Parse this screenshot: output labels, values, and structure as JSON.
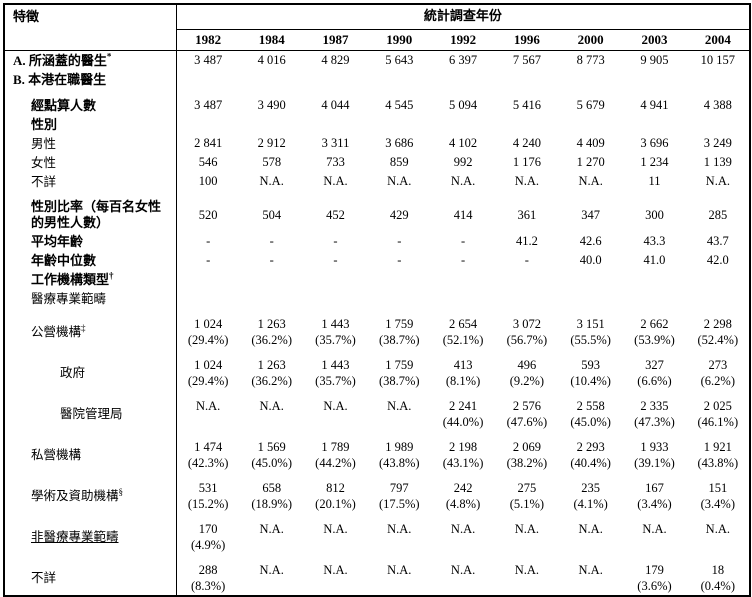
{
  "header": {
    "feature_label": "特徵",
    "year_group_label": "統計調查年份",
    "years": [
      "1982",
      "1984",
      "1987",
      "1990",
      "1992",
      "1996",
      "2000",
      "2003",
      "2004"
    ]
  },
  "table": {
    "rows": [
      {
        "label": "A. 所涵蓋的醫生",
        "sup": "*",
        "bold": true,
        "indent": 0,
        "values": [
          "3 487",
          "4 016",
          "4 829",
          "5 643",
          "6 397",
          "7 567",
          "8 773",
          "9 905",
          "10 157"
        ]
      },
      {
        "label": "B. 本港在職醫生",
        "bold": true,
        "indent": 0,
        "values": []
      },
      {
        "label": "經點算人數",
        "bold": true,
        "indent": 1,
        "gap": true,
        "values": [
          "3 487",
          "3 490",
          "4 044",
          "4 545",
          "5 094",
          "5 416",
          "5 679",
          "4 941",
          "4 388"
        ]
      },
      {
        "label": "性別",
        "bold": true,
        "indent": 1,
        "values": []
      },
      {
        "label": "男性",
        "bold": false,
        "indent": 1,
        "values": [
          "2 841",
          "2 912",
          "3 311",
          "3 686",
          "4 102",
          "4 240",
          "4 409",
          "3 696",
          "3 249"
        ]
      },
      {
        "label": "女性",
        "bold": false,
        "indent": 1,
        "values": [
          "546",
          "578",
          "733",
          "859",
          "992",
          "1 176",
          "1 270",
          "1 234",
          "1 139"
        ]
      },
      {
        "label": "不詳",
        "bold": false,
        "indent": 1,
        "values": [
          "100",
          "N.A.",
          "N.A.",
          "N.A.",
          "N.A.",
          "N.A.",
          "N.A.",
          "11",
          "N.A."
        ]
      },
      {
        "label": "性別比率（每百名女性的男性人數）",
        "bold": true,
        "indent": 1,
        "valign": "middle",
        "gap": true,
        "values": [
          "520",
          "504",
          "452",
          "429",
          "414",
          "361",
          "347",
          "300",
          "285"
        ]
      },
      {
        "label": "平均年齡",
        "bold": true,
        "indent": 1,
        "values": [
          "-",
          "-",
          "-",
          "-",
          "-",
          "41.2",
          "42.6",
          "43.3",
          "43.7"
        ]
      },
      {
        "label": "年齡中位數",
        "bold": true,
        "indent": 1,
        "values": [
          "-",
          "-",
          "-",
          "-",
          "-",
          "-",
          "40.0",
          "41.0",
          "42.0"
        ]
      },
      {
        "label": "工作機構類型",
        "sup": "†",
        "bold": true,
        "indent": 1,
        "values": []
      },
      {
        "label": "醫療專業範疇",
        "bold": false,
        "indent": 1,
        "values": []
      },
      {
        "label": "公營機構",
        "sup": "‡",
        "bold": false,
        "indent": 1,
        "gap": true,
        "values": [
          [
            "1 024",
            "(29.4%)"
          ],
          [
            "1 263",
            "(36.2%)"
          ],
          [
            "1 443",
            "(35.7%)"
          ],
          [
            "1 759",
            "(38.7%)"
          ],
          [
            "2 654",
            "(52.1%)"
          ],
          [
            "3 072",
            "(56.7%)"
          ],
          [
            "3 151",
            "(55.5%)"
          ],
          [
            "2 662",
            "(53.9%)"
          ],
          [
            "2 298",
            "(52.4%)"
          ]
        ]
      },
      {
        "label": "政府",
        "bold": false,
        "indent": 2,
        "gap": true,
        "values": [
          [
            "1 024",
            "(29.4%)"
          ],
          [
            "1 263",
            "(36.2%)"
          ],
          [
            "1 443",
            "(35.7%)"
          ],
          [
            "1 759",
            "(38.7%)"
          ],
          [
            "413",
            "(8.1%)"
          ],
          [
            "496",
            "(9.2%)"
          ],
          [
            "593",
            "(10.4%)"
          ],
          [
            "327",
            "(6.6%)"
          ],
          [
            "273",
            "(6.2%)"
          ]
        ]
      },
      {
        "label": "醫院管理局",
        "bold": false,
        "indent": 2,
        "gap": true,
        "values": [
          "N.A.",
          "N.A.",
          "N.A.",
          "N.A.",
          [
            "2 241",
            "(44.0%)"
          ],
          [
            "2 576",
            "(47.6%)"
          ],
          [
            "2 558",
            "(45.0%)"
          ],
          [
            "2 335",
            "(47.3%)"
          ],
          [
            "2 025",
            "(46.1%)"
          ]
        ]
      },
      {
        "label": "私營機構",
        "bold": false,
        "indent": 1,
        "gap": true,
        "values": [
          [
            "1 474",
            "(42.3%)"
          ],
          [
            "1 569",
            "(45.0%)"
          ],
          [
            "1 789",
            "(44.2%)"
          ],
          [
            "1 989",
            "(43.8%)"
          ],
          [
            "2 198",
            "(43.1%)"
          ],
          [
            "2 069",
            "(38.2%)"
          ],
          [
            "2 293",
            "(40.4%)"
          ],
          [
            "1 933",
            "(39.1%)"
          ],
          [
            "1 921",
            "(43.8%)"
          ]
        ]
      },
      {
        "label": "學術及資助機構",
        "sup": "§",
        "bold": false,
        "indent": 1,
        "gap": true,
        "values": [
          [
            "531",
            "(15.2%)"
          ],
          [
            "658",
            "(18.9%)"
          ],
          [
            "812",
            "(20.1%)"
          ],
          [
            "797",
            "(17.5%)"
          ],
          [
            "242",
            "(4.8%)"
          ],
          [
            "275",
            "(5.1%)"
          ],
          [
            "235",
            "(4.1%)"
          ],
          [
            "167",
            "(3.4%)"
          ],
          [
            "151",
            "(3.4%)"
          ]
        ]
      },
      {
        "label": "非醫療專業範疇",
        "bold": false,
        "indent": 1,
        "underline": true,
        "gap": true,
        "values": [
          [
            "170",
            "(4.9%)"
          ],
          "N.A.",
          "N.A.",
          "N.A.",
          "N.A.",
          "N.A.",
          "N.A.",
          "N.A.",
          "N.A."
        ]
      },
      {
        "label": "不詳",
        "bold": false,
        "indent": 1,
        "gap": true,
        "values": [
          [
            "288",
            "(8.3%)"
          ],
          "N.A.",
          "N.A.",
          "N.A.",
          "N.A.",
          "N.A.",
          "N.A.",
          [
            "179",
            "(3.6%)"
          ],
          [
            "18",
            "(0.4%)"
          ]
        ]
      }
    ]
  },
  "colors": {
    "border": "#000000",
    "text": "#000000",
    "background": "#ffffff"
  }
}
